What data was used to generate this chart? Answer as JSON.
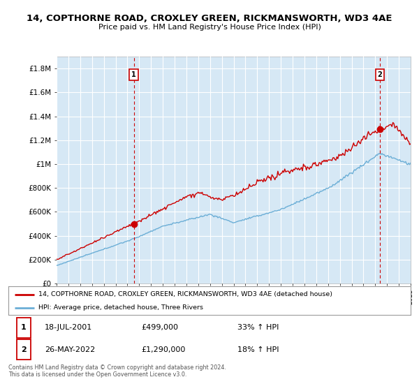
{
  "title_line1": "14, COPTHORNE ROAD, CROXLEY GREEN, RICKMANSWORTH, WD3 4AE",
  "title_line2": "Price paid vs. HM Land Registry's House Price Index (HPI)",
  "ylabel_ticks": [
    "£0",
    "£200K",
    "£400K",
    "£600K",
    "£800K",
    "£1M",
    "£1.2M",
    "£1.4M",
    "£1.6M",
    "£1.8M"
  ],
  "ytick_values": [
    0,
    200000,
    400000,
    600000,
    800000,
    1000000,
    1200000,
    1400000,
    1600000,
    1800000
  ],
  "ylim": [
    0,
    1900000
  ],
  "x_start_year": 1995,
  "x_end_year": 2025,
  "hpi_color": "#6baed6",
  "property_color": "#cc0000",
  "dashed_color": "#cc0000",
  "fill_color": "#d6e8f5",
  "background_color": "#ffffff",
  "grid_color": "#cccccc",
  "marker1_year": 2001.55,
  "marker1_value": 499000,
  "marker2_year": 2022.4,
  "marker2_value": 1290000,
  "legend_property_label": "14, COPTHORNE ROAD, CROXLEY GREEN, RICKMANSWORTH, WD3 4AE (detached house)",
  "legend_hpi_label": "HPI: Average price, detached house, Three Rivers",
  "annotation1_label": "1",
  "annotation1_date": "18-JUL-2001",
  "annotation1_price": "£499,000",
  "annotation1_hpi": "33% ↑ HPI",
  "annotation2_label": "2",
  "annotation2_date": "26-MAY-2022",
  "annotation2_price": "£1,290,000",
  "annotation2_hpi": "18% ↑ HPI",
  "footnote": "Contains HM Land Registry data © Crown copyright and database right 2024.\nThis data is licensed under the Open Government Licence v3.0."
}
